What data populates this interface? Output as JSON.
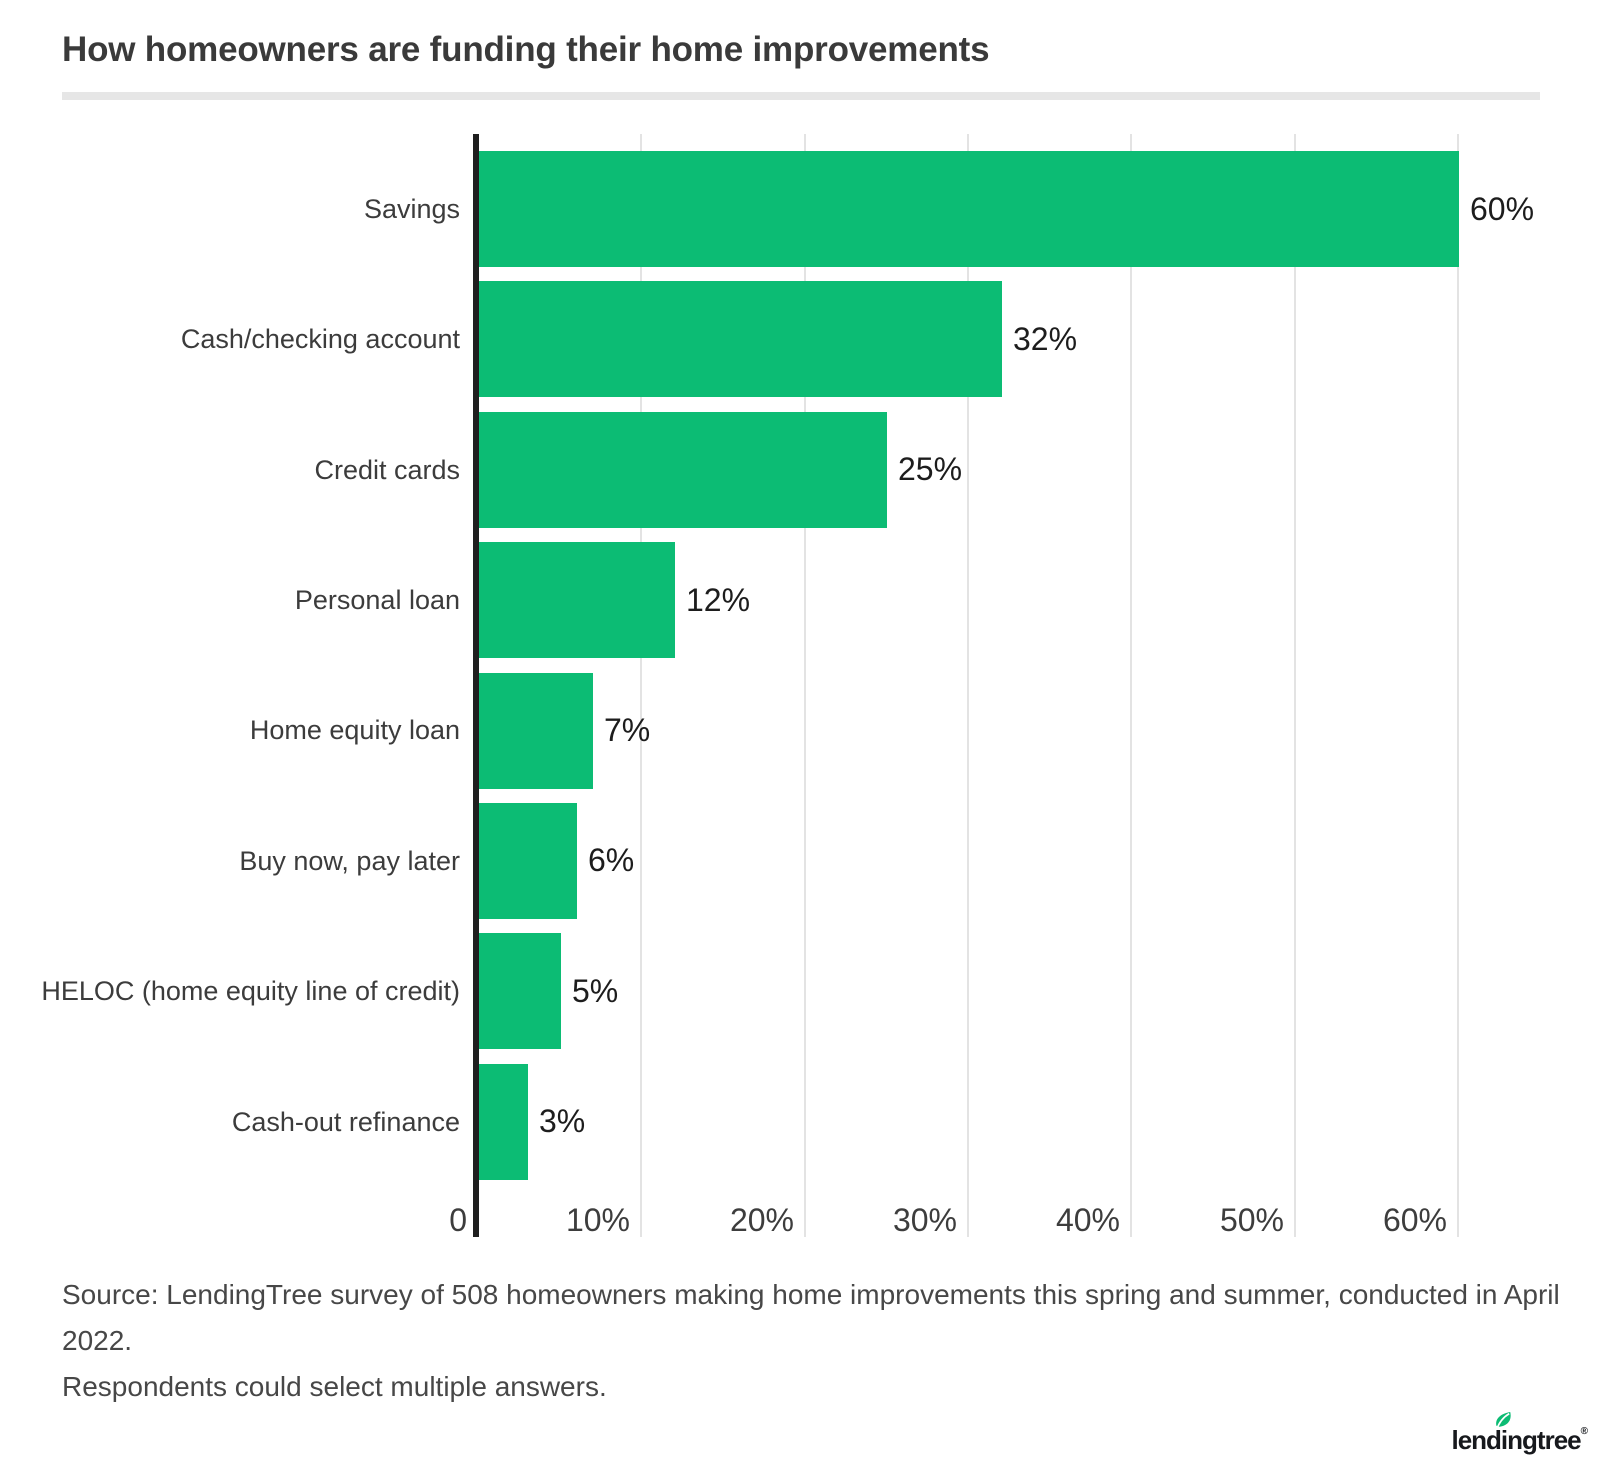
{
  "title": "How homeowners are funding their home improvements",
  "chart_data": {
    "type": "bar",
    "orientation": "horizontal",
    "title": "How homeowners are funding their home improvements",
    "categories": [
      "Savings",
      "Cash/checking account",
      "Credit cards",
      "Personal loan",
      "Home equity loan",
      "Buy now, pay later",
      "HELOC (home equity line of credit)",
      "Cash-out refinance"
    ],
    "values": [
      60,
      32,
      25,
      12,
      7,
      6,
      5,
      3
    ],
    "value_labels": [
      "60%",
      "32%",
      "25%",
      "12%",
      "7%",
      "6%",
      "5%",
      "3%"
    ],
    "xlabel": "",
    "ylabel": "",
    "x_ticks": [
      "0",
      "10%",
      "20%",
      "30%",
      "40%",
      "50%",
      "60%"
    ],
    "x_tick_values": [
      0,
      10,
      20,
      30,
      40,
      50,
      60
    ],
    "xlim": [
      0,
      60
    ],
    "grid": true,
    "legend_position": "none",
    "bar_color": "#0cbc74",
    "grid_color": "#e3e3e3",
    "axis_color": "#1f1f1f",
    "label_color": "#3c3c3c",
    "value_color": "#1d1d1d"
  },
  "source": {
    "line1": "Source: LendingTree survey of 508 homeowners making home improvements this spring and summer, conducted in April 2022.",
    "line2": "Respondents could select multiple answers."
  },
  "footer": {
    "logo_text": "lendingtree",
    "trademark": "®"
  }
}
